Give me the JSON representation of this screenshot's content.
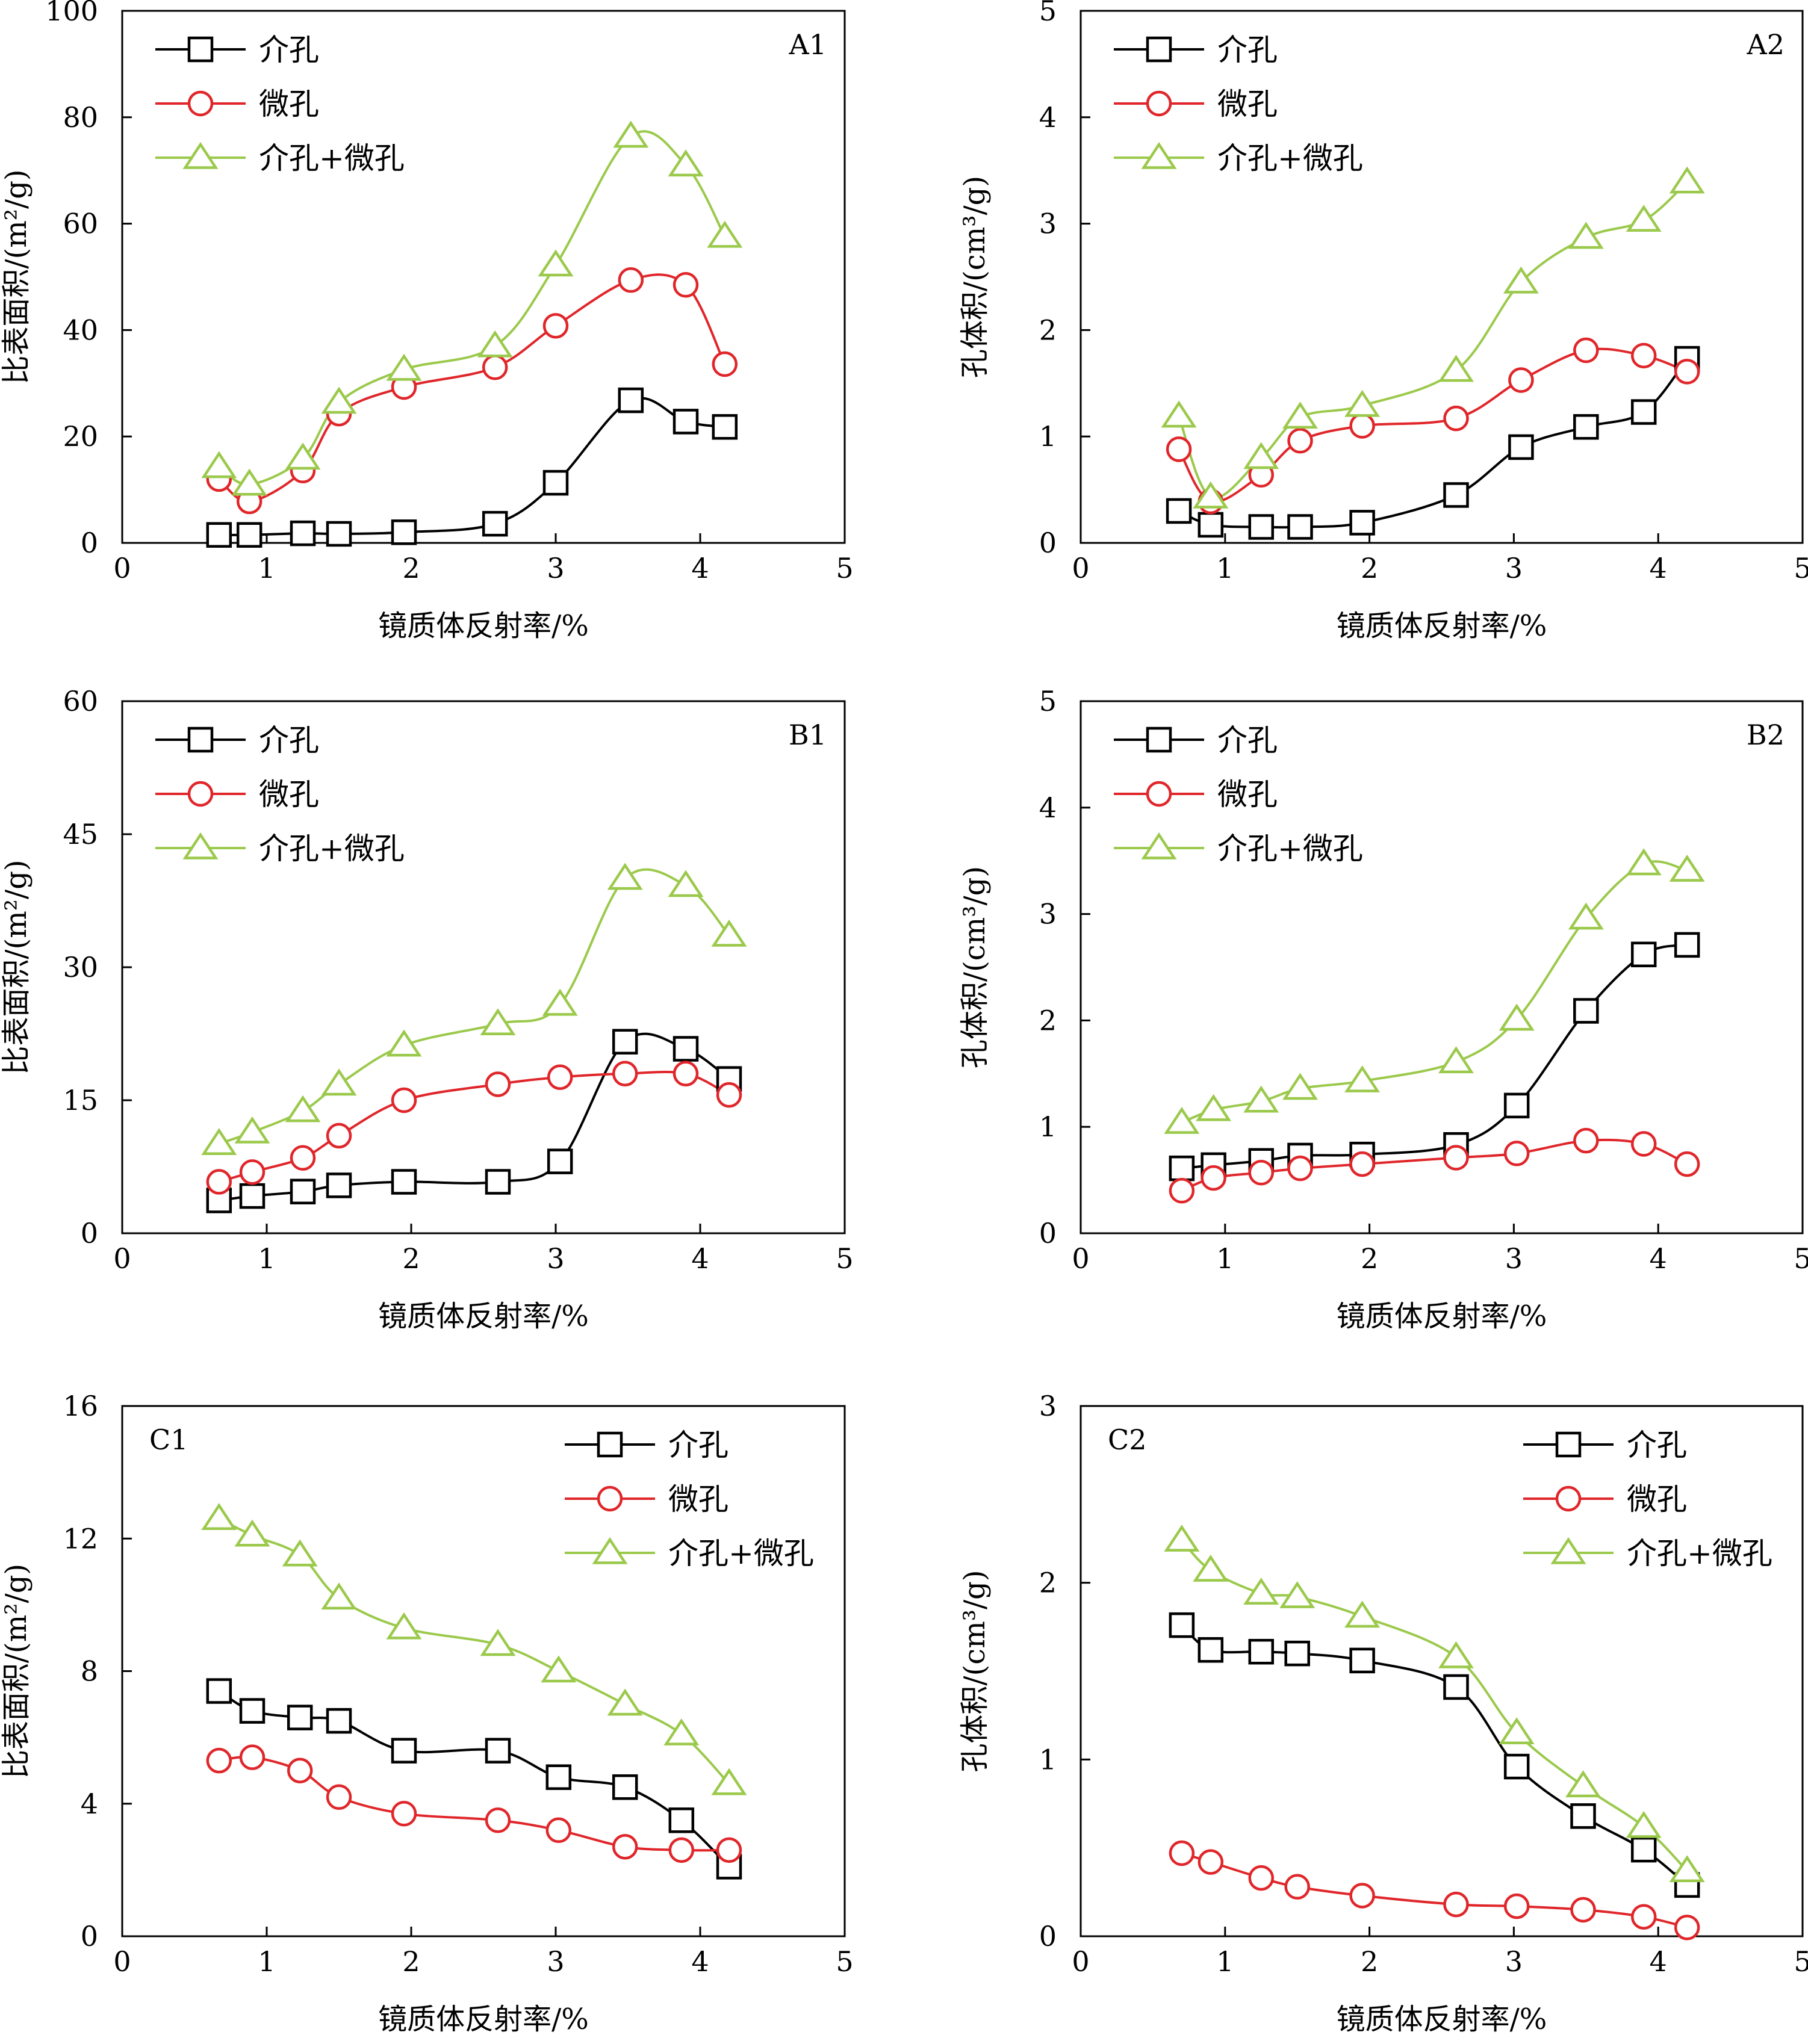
{
  "figure": {
    "series_styles": {
      "mesopore": {
        "color": "#000000",
        "marker": "square"
      },
      "micropore": {
        "color": "#e0262a",
        "marker": "circle"
      },
      "total": {
        "color": "#9bc94b",
        "marker": "triangle"
      }
    }
  },
  "chart_data": [
    {
      "type": "line",
      "panel_label": "A1",
      "xlabel": "镜质体反射率/%",
      "ylabel": "比表面积/(m²/g)",
      "xlim": [
        0,
        5
      ],
      "ylim": [
        0,
        100
      ],
      "x_ticks": [
        "0",
        "1",
        "2",
        "3",
        "4",
        "5"
      ],
      "y_ticks": [
        "0",
        "20",
        "40",
        "60",
        "80",
        "100"
      ],
      "legend_position": "top-left",
      "grid": false,
      "x": [
        0.67,
        0.88,
        1.25,
        1.5,
        1.95,
        2.58,
        3.0,
        3.52,
        3.9,
        4.17
      ],
      "series": [
        {
          "name": "介孔",
          "key": "mesopore",
          "values": [
            1.5,
            1.5,
            1.8,
            1.7,
            2.0,
            3.6,
            11.3,
            26.8,
            22.8,
            21.8
          ]
        },
        {
          "name": "微孔",
          "key": "micropore",
          "values": [
            12.0,
            7.8,
            13.6,
            24.3,
            29.3,
            33.0,
            40.8,
            49.4,
            48.5,
            33.6
          ]
        },
        {
          "name": "介孔+微孔",
          "key": "total",
          "values": [
            14.3,
            11.0,
            15.9,
            26.4,
            32.6,
            37.0,
            52.2,
            76.4,
            71.0,
            57.6
          ]
        }
      ]
    },
    {
      "type": "line",
      "panel_label": "A2",
      "xlabel": "镜质体反射率/%",
      "ylabel": "孔体积/(cm³/g)",
      "xlim": [
        0,
        5
      ],
      "ylim": [
        0,
        5
      ],
      "x_ticks": [
        "0",
        "1",
        "2",
        "3",
        "4",
        "5"
      ],
      "y_ticks": [
        "0",
        "1",
        "2",
        "3",
        "4",
        "5"
      ],
      "legend_position": "top-left",
      "grid": false,
      "x": [
        0.68,
        0.9,
        1.25,
        1.52,
        1.95,
        2.6,
        3.05,
        3.5,
        3.9,
        4.2
      ],
      "series": [
        {
          "name": "介孔",
          "key": "mesopore",
          "values": [
            0.3,
            0.17,
            0.15,
            0.15,
            0.19,
            0.45,
            0.9,
            1.09,
            1.23,
            1.73
          ]
        },
        {
          "name": "微孔",
          "key": "micropore",
          "values": [
            0.88,
            0.39,
            0.64,
            0.96,
            1.1,
            1.17,
            1.53,
            1.81,
            1.76,
            1.61
          ]
        },
        {
          "name": "介孔+微孔",
          "key": "total",
          "values": [
            1.19,
            0.43,
            0.8,
            1.18,
            1.29,
            1.62,
            2.45,
            2.87,
            3.03,
            3.39
          ]
        }
      ]
    },
    {
      "type": "line",
      "panel_label": "B1",
      "xlabel": "镜质体反射率/%",
      "ylabel": "比表面积/(m²/g)",
      "xlim": [
        0,
        5
      ],
      "ylim": [
        0,
        60
      ],
      "x_ticks": [
        "0",
        "1",
        "2",
        "3",
        "4",
        "5"
      ],
      "y_ticks": [
        "0",
        "15",
        "30",
        "45",
        "60"
      ],
      "legend_position": "top-left",
      "grid": false,
      "x": [
        0.67,
        0.9,
        1.25,
        1.5,
        1.95,
        2.6,
        3.03,
        3.48,
        3.9,
        4.2
      ],
      "series": [
        {
          "name": "介孔",
          "key": "mesopore",
          "values": [
            3.7,
            4.2,
            4.7,
            5.4,
            5.8,
            5.8,
            8.1,
            21.6,
            20.8,
            17.4
          ]
        },
        {
          "name": "微孔",
          "key": "micropore",
          "values": [
            5.8,
            6.9,
            8.5,
            11.0,
            15.0,
            16.8,
            17.6,
            18.0,
            18.0,
            15.6
          ]
        },
        {
          "name": "介孔+微孔",
          "key": "total",
          "values": [
            10.1,
            11.4,
            13.8,
            16.8,
            21.2,
            23.6,
            25.8,
            40.0,
            39.2,
            33.6
          ]
        }
      ]
    },
    {
      "type": "line",
      "panel_label": "B2",
      "xlabel": "镜质体反射率/%",
      "ylabel": "孔体积/(cm³/g)",
      "xlim": [
        0,
        5
      ],
      "ylim": [
        0,
        5
      ],
      "x_ticks": [
        "0",
        "1",
        "2",
        "3",
        "4",
        "5"
      ],
      "y_ticks": [
        "0",
        "1",
        "2",
        "3",
        "4",
        "5"
      ],
      "legend_position": "top-left",
      "grid": false,
      "x": [
        0.7,
        0.92,
        1.25,
        1.52,
        1.95,
        2.6,
        3.02,
        3.5,
        3.9,
        4.2
      ],
      "series": [
        {
          "name": "介孔",
          "key": "mesopore",
          "values": [
            0.61,
            0.64,
            0.68,
            0.73,
            0.74,
            0.83,
            1.2,
            2.09,
            2.62,
            2.71
          ]
        },
        {
          "name": "微孔",
          "key": "micropore",
          "values": [
            0.4,
            0.52,
            0.57,
            0.61,
            0.65,
            0.71,
            0.75,
            0.87,
            0.84,
            0.65
          ]
        },
        {
          "name": "介孔+微孔",
          "key": "total",
          "values": [
            1.04,
            1.16,
            1.24,
            1.36,
            1.43,
            1.61,
            2.01,
            2.96,
            3.47,
            3.41
          ]
        }
      ]
    },
    {
      "type": "line",
      "panel_label": "C1",
      "xlabel": "镜质体反射率/%",
      "ylabel": "比表面积/(m²/g)",
      "xlim": [
        0,
        5
      ],
      "ylim": [
        0,
        16
      ],
      "x_ticks": [
        "0",
        "1",
        "2",
        "3",
        "4",
        "5"
      ],
      "y_ticks": [
        "0",
        "4",
        "8",
        "12",
        "16"
      ],
      "legend_position": "top-right",
      "grid": false,
      "x": [
        0.67,
        0.9,
        1.23,
        1.5,
        1.95,
        2.6,
        3.02,
        3.48,
        3.87,
        4.2
      ],
      "series": [
        {
          "name": "介孔",
          "key": "mesopore",
          "values": [
            7.4,
            6.8,
            6.6,
            6.5,
            5.6,
            5.6,
            4.8,
            4.5,
            3.5,
            2.1
          ]
        },
        {
          "name": "微孔",
          "key": "micropore",
          "values": [
            5.3,
            5.4,
            5.0,
            4.2,
            3.7,
            3.5,
            3.2,
            2.7,
            2.6,
            2.6
          ]
        },
        {
          "name": "介孔+微孔",
          "key": "total",
          "values": [
            12.6,
            12.1,
            11.5,
            10.2,
            9.3,
            8.8,
            8.0,
            7.0,
            6.1,
            4.6
          ]
        }
      ]
    },
    {
      "type": "line",
      "panel_label": "C2",
      "xlabel": "镜质体反射率/%",
      "ylabel": "孔体积/(cm³/g)",
      "xlim": [
        0,
        5
      ],
      "ylim": [
        0,
        3
      ],
      "x_ticks": [
        "0",
        "1",
        "2",
        "3",
        "4",
        "5"
      ],
      "y_ticks": [
        "0",
        "1",
        "2",
        "3"
      ],
      "legend_position": "top-right",
      "grid": false,
      "x": [
        0.7,
        0.9,
        1.25,
        1.5,
        1.95,
        2.6,
        3.02,
        3.48,
        3.9,
        4.2
      ],
      "series": [
        {
          "name": "介孔",
          "key": "mesopore",
          "values": [
            1.76,
            1.62,
            1.61,
            1.6,
            1.56,
            1.41,
            0.96,
            0.68,
            0.49,
            0.29
          ]
        },
        {
          "name": "微孔",
          "key": "micropore",
          "values": [
            0.47,
            0.42,
            0.33,
            0.28,
            0.23,
            0.18,
            0.17,
            0.15,
            0.11,
            0.05
          ]
        },
        {
          "name": "介孔+微孔",
          "key": "total",
          "values": [
            2.24,
            2.07,
            1.94,
            1.92,
            1.81,
            1.58,
            1.15,
            0.85,
            0.62,
            0.37
          ]
        }
      ]
    }
  ]
}
